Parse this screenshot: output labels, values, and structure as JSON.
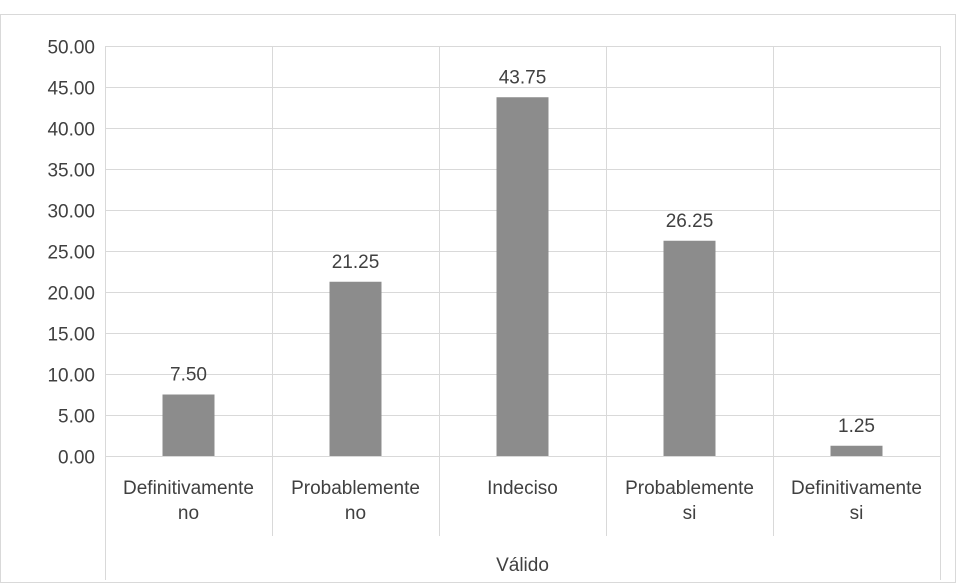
{
  "chart_data": {
    "type": "bar",
    "categories": [
      [
        "Definitivamente",
        "no"
      ],
      [
        "Probablemente",
        "no"
      ],
      [
        "Indeciso"
      ],
      [
        "Probablemente",
        "si"
      ],
      [
        "Definitivamente",
        "si"
      ]
    ],
    "values": [
      7.5,
      21.25,
      43.75,
      26.25,
      1.25
    ],
    "data_labels": [
      "7.50",
      "21.25",
      "43.75",
      "26.25",
      "1.25"
    ],
    "y_tick_labels": [
      "0.00",
      "5.00",
      "10.00",
      "15.00",
      "20.00",
      "25.00",
      "30.00",
      "35.00",
      "40.00",
      "45.00",
      "50.00"
    ],
    "ylim": [
      0,
      50
    ],
    "y_step": 5,
    "group_label": "Válido",
    "title": "",
    "xlabel": "",
    "ylabel": "",
    "grid": true,
    "legend": "none",
    "colors": {
      "bar": "#8c8c8c",
      "grid": "#d9d9d9",
      "text": "#404040",
      "frame": "#d9d9d9"
    }
  }
}
